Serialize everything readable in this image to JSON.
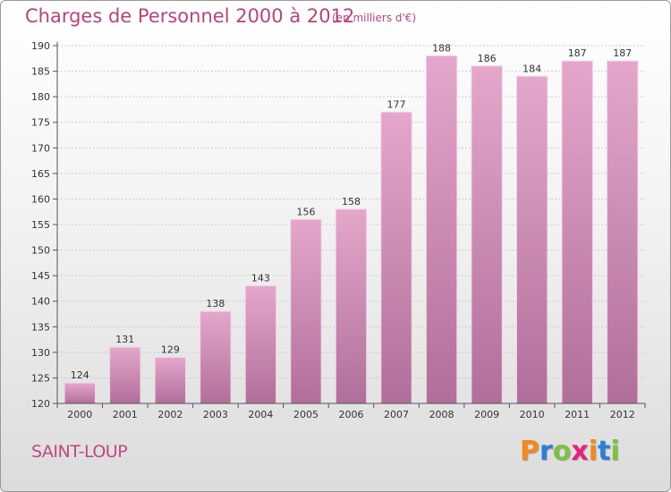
{
  "title": "Charges de Personnel 2000 à 2012",
  "subtitle": "(en milliers d'€)",
  "commune": "SAINT-LOUP",
  "logo": {
    "text": "Proxiti",
    "letter_colors": [
      "#f08a1c",
      "#2a7fd4",
      "#7cc142",
      "#e4237a",
      "#f08a1c",
      "#2a7fd4",
      "#7cc142"
    ]
  },
  "colors": {
    "bar_top": "#e4a7cb",
    "bar_bottom": "#b06f9a",
    "bar_edge": "#f3d3e6",
    "axis": "#555555",
    "grid": "#cccccc",
    "title": "#b5457c"
  },
  "chart_data": {
    "type": "bar",
    "categories": [
      "2000",
      "2001",
      "2002",
      "2003",
      "2004",
      "2005",
      "2006",
      "2007",
      "2008",
      "2009",
      "2010",
      "2011",
      "2012"
    ],
    "values": [
      124,
      131,
      129,
      138,
      143,
      156,
      158,
      177,
      188,
      186,
      184,
      187,
      187
    ],
    "data_labels": [
      "124",
      "131",
      "129",
      "138",
      "143",
      "156",
      "158",
      "177",
      "188",
      "186",
      "184",
      "187",
      "187"
    ],
    "ylim": [
      120,
      190
    ],
    "yticks": [
      120,
      125,
      130,
      135,
      140,
      145,
      150,
      155,
      160,
      165,
      170,
      175,
      180,
      185,
      190
    ],
    "title": "Charges de Personnel 2000 à 2012",
    "xlabel": "",
    "ylabel": "",
    "grid": true,
    "legend": "none"
  }
}
